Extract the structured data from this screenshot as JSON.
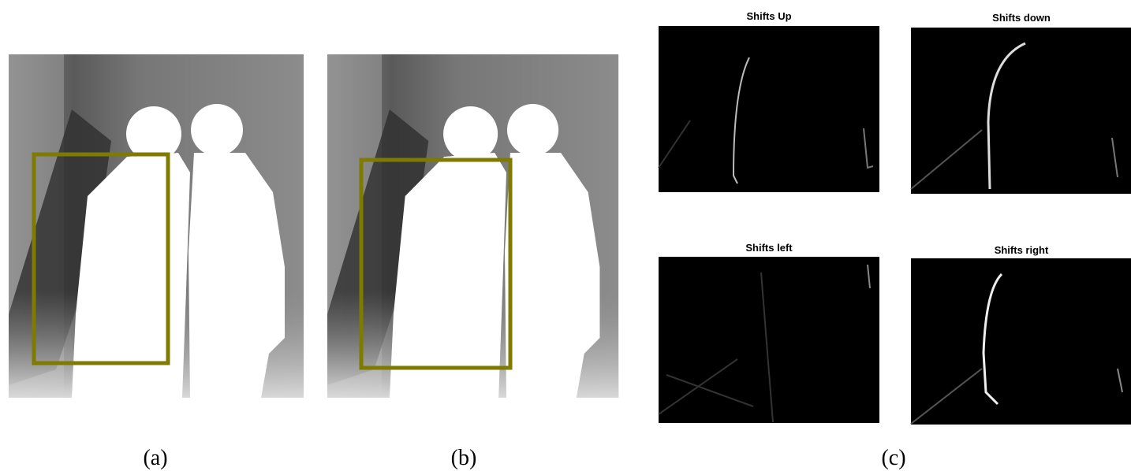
{
  "panels": [
    {
      "label": "(a)"
    },
    {
      "label": "(b)"
    },
    {
      "label": "(c)"
    }
  ],
  "subpanels": [
    {
      "title": "Shifts Up"
    },
    {
      "title": "Shifts down"
    },
    {
      "title": "Shifts left"
    },
    {
      "title": "Shifts right"
    }
  ]
}
